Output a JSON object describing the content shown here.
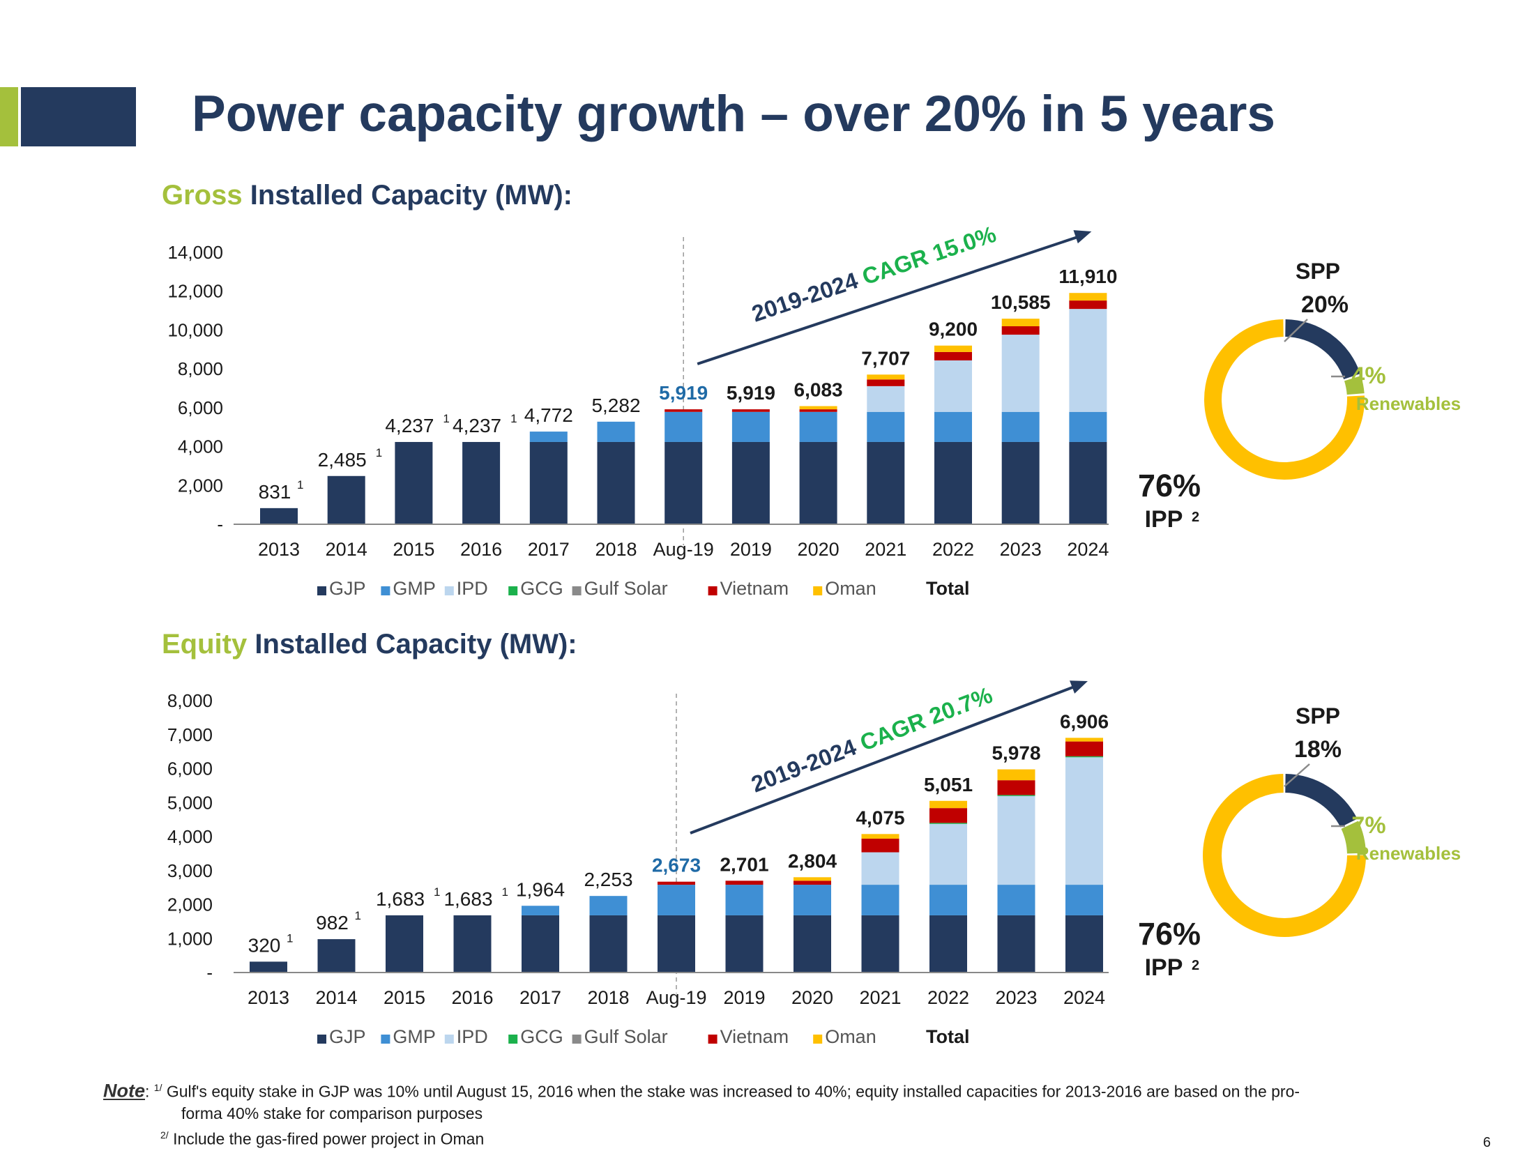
{
  "page_title": "Power capacity growth – over 20% in 5 years",
  "gross": {
    "title_hl": "Gross",
    "title_rest": " Installed Capacity (MW):"
  },
  "equity": {
    "title_hl": "Equity",
    "title_rest": " Installed Capacity (MW):"
  },
  "legend": [
    {
      "name": "GJP",
      "color": "#243a5e"
    },
    {
      "name": "GMP",
      "color": "#3f8fd4"
    },
    {
      "name": "IPD",
      "color": "#bcd6ee"
    },
    {
      "name": "GCG",
      "color": "#1bb14c"
    },
    {
      "name": "Gulf Solar",
      "color": "#8a8a8a"
    },
    {
      "name": "Vietnam",
      "color": "#c00000"
    },
    {
      "name": "Oman",
      "color": "#ffc000"
    }
  ],
  "legend_total": "Total",
  "chart_data": [
    {
      "type": "bar",
      "stacked": true,
      "title": "Gross Installed Capacity (MW):",
      "categories": [
        "2013",
        "2014",
        "2015",
        "2016",
        "2017",
        "2018",
        "Aug-19",
        "2019",
        "2020",
        "2021",
        "2022",
        "2023",
        "2024"
      ],
      "ylim": [
        0,
        14000
      ],
      "yticks": [
        "-",
        "2,000",
        "4,000",
        "6,000",
        "8,000",
        "10,000",
        "12,000",
        "14,000"
      ],
      "series": [
        {
          "name": "GJP",
          "values": [
            831,
            2485,
            4237,
            4237,
            4237,
            4237,
            4237,
            4237,
            4237,
            4237,
            4237,
            4237,
            4237
          ]
        },
        {
          "name": "GMP",
          "values": [
            0,
            0,
            0,
            0,
            535,
            1045,
            1550,
            1550,
            1550,
            1550,
            1550,
            1550,
            1550
          ]
        },
        {
          "name": "IPD",
          "values": [
            0,
            0,
            0,
            0,
            0,
            0,
            0,
            0,
            0,
            1325,
            2650,
            3975,
            5300
          ]
        },
        {
          "name": "GCG",
          "values": [
            0,
            0,
            0,
            0,
            0,
            0,
            0,
            0,
            0,
            0,
            0,
            0,
            0
          ]
        },
        {
          "name": "Gulf Solar",
          "values": [
            0,
            0,
            0,
            0,
            0,
            0,
            0,
            0,
            0,
            0,
            0,
            0,
            0
          ]
        },
        {
          "name": "Vietnam",
          "values": [
            0,
            0,
            0,
            0,
            0,
            0,
            132,
            132,
            132,
            343,
            433,
            433,
            433
          ]
        },
        {
          "name": "Oman",
          "values": [
            0,
            0,
            0,
            0,
            0,
            0,
            0,
            0,
            164,
            252,
            330,
            390,
            390
          ]
        }
      ],
      "totals": [
        "831",
        "2,485",
        "4,237",
        "4,237",
        "4,772",
        "5,282",
        "5,919",
        "5,919",
        "6,083",
        "7,707",
        "9,200",
        "10,585",
        "11,910"
      ],
      "total_marks": [
        "1",
        "1",
        "1",
        "1",
        "",
        "",
        "",
        "",
        "",
        "",
        "",
        "",
        ""
      ],
      "highlight_index": 6,
      "cagr_label": "2019-2024 ",
      "cagr_value": "CAGR 15.0%",
      "donut": {
        "slices": [
          {
            "label": "SPP",
            "value": 20,
            "pct": "20%",
            "color": "#243a5e"
          },
          {
            "label": "Renewables",
            "value": 4,
            "pct": "4%",
            "color": "#a4c03c"
          },
          {
            "label": "IPP",
            "value": 76,
            "pct": "76%",
            "color": "#ffc000",
            "sup": "2"
          }
        ]
      }
    },
    {
      "type": "bar",
      "stacked": true,
      "title": "Equity Installed Capacity (MW):",
      "categories": [
        "2013",
        "2014",
        "2015",
        "2016",
        "2017",
        "2018",
        "Aug-19",
        "2019",
        "2020",
        "2021",
        "2022",
        "2023",
        "2024"
      ],
      "ylim": [
        0,
        8000
      ],
      "yticks": [
        "-",
        "1,000",
        "2,000",
        "3,000",
        "4,000",
        "5,000",
        "6,000",
        "7,000",
        "8,000"
      ],
      "series": [
        {
          "name": "GJP",
          "values": [
            320,
            982,
            1683,
            1683,
            1683,
            1683,
            1683,
            1683,
            1683,
            1683,
            1683,
            1683,
            1683
          ]
        },
        {
          "name": "GMP",
          "values": [
            0,
            0,
            0,
            0,
            281,
            570,
            900,
            900,
            900,
            900,
            900,
            900,
            900
          ]
        },
        {
          "name": "IPD",
          "values": [
            0,
            0,
            0,
            0,
            0,
            0,
            0,
            0,
            0,
            955,
            1790,
            2610,
            3750
          ]
        },
        {
          "name": "GCG",
          "values": [
            0,
            0,
            0,
            0,
            0,
            0,
            0,
            0,
            0,
            0,
            30,
            30,
            30
          ]
        },
        {
          "name": "Gulf Solar",
          "values": [
            0,
            0,
            0,
            0,
            0,
            0,
            0,
            0,
            0,
            0,
            0,
            0,
            0
          ]
        },
        {
          "name": "Vietnam",
          "values": [
            0,
            0,
            0,
            0,
            0,
            0,
            90,
            118,
            118,
            400,
            435,
            435,
            435
          ]
        },
        {
          "name": "Oman",
          "values": [
            0,
            0,
            0,
            0,
            0,
            0,
            0,
            0,
            103,
            137,
            213,
            320,
            108
          ]
        }
      ],
      "totals": [
        "320",
        "982",
        "1,683",
        "1,683",
        "1,964",
        "2,253",
        "2,673",
        "2,701",
        "2,804",
        "4,075",
        "5,051",
        "5,978",
        "6,906"
      ],
      "total_marks": [
        "1",
        "1",
        "1",
        "1",
        "",
        "",
        "",
        "",
        "",
        "",
        "",
        "",
        ""
      ],
      "highlight_index": 6,
      "cagr_label": "2019-2024 ",
      "cagr_value": "CAGR 20.7%",
      "donut": {
        "slices": [
          {
            "label": "SPP",
            "value": 18,
            "pct": "18%",
            "color": "#243a5e"
          },
          {
            "label": "Renewables",
            "value": 7,
            "pct": "7%",
            "color": "#a4c03c"
          },
          {
            "label": "IPP",
            "value": 76,
            "pct": "76%",
            "color": "#ffc000",
            "sup": "2"
          }
        ]
      }
    }
  ],
  "note": {
    "label": "Note",
    "line1_sup": "1/",
    "line1": " Gulf's equity stake in GJP was 10% until August 15, 2016 when the stake was increased to 40%; equity installed capacities for 2013-2016 are based on the pro-",
    "line1b": "forma 40% stake for comparison purposes",
    "line2_sup": "2/",
    "line2": " Include the gas-fired power project in Oman"
  },
  "page_number": "6"
}
